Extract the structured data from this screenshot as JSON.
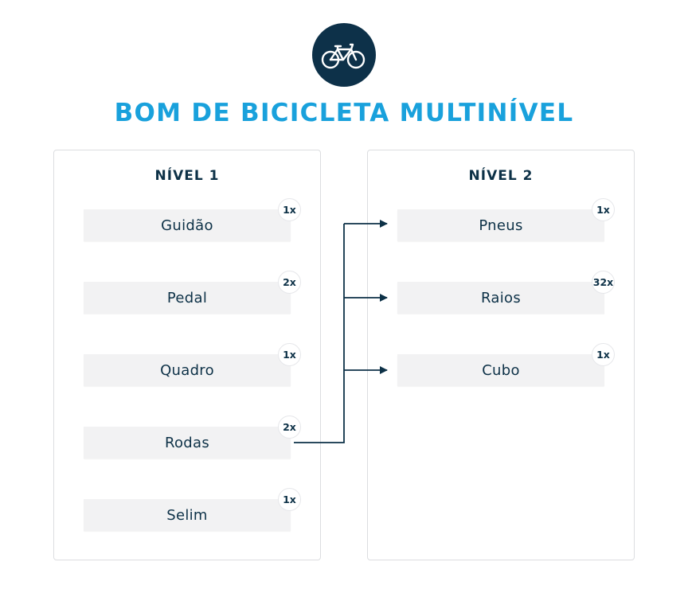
{
  "header": {
    "logo_icon": "bicycle-icon",
    "title": "BOM DE BICICLETA MULTINÍVEL"
  },
  "level1": {
    "title": "NÍVEL 1",
    "items": [
      {
        "label": "Guidão",
        "qty": "1x"
      },
      {
        "label": "Pedal",
        "qty": "2x"
      },
      {
        "label": "Quadro",
        "qty": "1x"
      },
      {
        "label": "Rodas",
        "qty": "2x"
      },
      {
        "label": "Selim",
        "qty": "1x"
      }
    ]
  },
  "level2": {
    "title": "NÍVEL 2",
    "items": [
      {
        "label": "Pneus",
        "qty": "1x"
      },
      {
        "label": "Raios",
        "qty": "32x"
      },
      {
        "label": "Cubo",
        "qty": "1x"
      }
    ]
  },
  "colors": {
    "title": "#19a1dc",
    "navy": "#0d3149",
    "item_bg": "#f2f2f3"
  }
}
